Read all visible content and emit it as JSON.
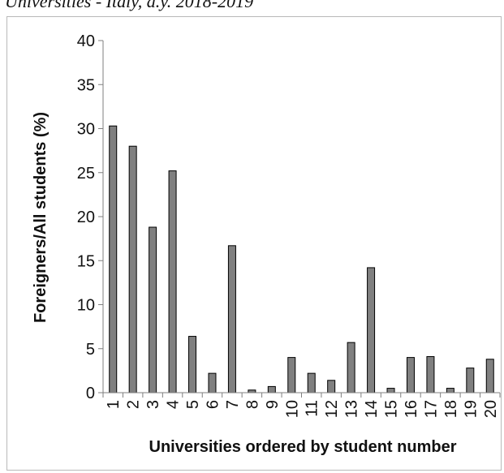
{
  "caption": "Universities - Italy, a.y. 2018-2019",
  "chart_data": {
    "type": "bar",
    "title": "",
    "xlabel": "Universities ordered by student number",
    "ylabel": "Foreigners/All students (%)",
    "ylim": [
      0,
      40
    ],
    "yticks": [
      "0",
      "5",
      "10",
      "15",
      "20",
      "25",
      "30",
      "35",
      "40"
    ],
    "categories": [
      "1",
      "2",
      "3",
      "4",
      "5",
      "6",
      "7",
      "8",
      "9",
      "10",
      "11",
      "12",
      "13",
      "14",
      "15",
      "16",
      "17",
      "18",
      "19",
      "20"
    ],
    "values": [
      30.3,
      28.0,
      18.8,
      25.2,
      6.4,
      2.2,
      16.7,
      0.3,
      0.7,
      4.0,
      2.2,
      1.4,
      5.7,
      14.2,
      0.5,
      4.0,
      4.1,
      0.5,
      2.8,
      3.8
    ],
    "grid": false,
    "bar_color": "#808080",
    "bar_edge_color": "#000000"
  }
}
